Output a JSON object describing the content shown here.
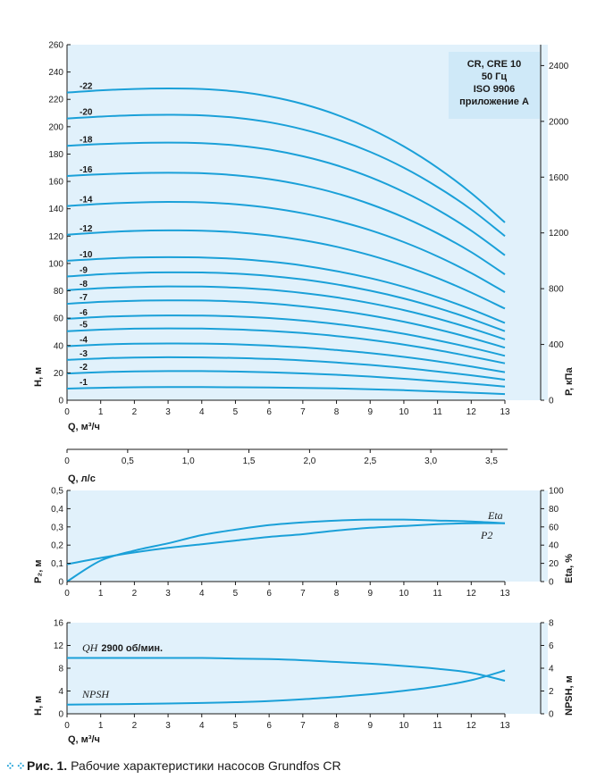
{
  "colors": {
    "curve": "#1aa0d8",
    "panel_bg": "#e1f1fb",
    "legend_bg": "#cfe9f8",
    "axis": "#1a1a1a"
  },
  "chart_data": [
    {
      "type": "line",
      "legend": [
        "CR, CRE 10",
        "50 Гц",
        "ISO 9906",
        "приложение A"
      ],
      "xlabel": "Q, м³/ч",
      "ylabel": "H, м",
      "y2label": "P, кПа",
      "xlim": [
        0,
        13
      ],
      "ylim": [
        0,
        260
      ],
      "y2lim": [
        0,
        2550
      ],
      "xticks": [
        "0",
        "1",
        "2",
        "3",
        "4",
        "5",
        "6",
        "7",
        "8",
        "9",
        "10",
        "11",
        "12",
        "13"
      ],
      "yticks": [
        "0",
        "20",
        "40",
        "60",
        "80",
        "100",
        "120",
        "140",
        "160",
        "180",
        "200",
        "220",
        "240",
        "260"
      ],
      "y2ticks": [
        "0",
        "400",
        "800",
        "1200",
        "1600",
        "2000",
        "2400"
      ],
      "x": [
        0,
        1,
        2,
        3,
        4,
        5,
        6,
        7,
        8,
        9,
        10,
        11,
        12,
        13
      ],
      "series": [
        {
          "name": "-1",
          "values": [
            8.5,
            9.1,
            9.5,
            9.6,
            9.6,
            9.5,
            9.3,
            9.0,
            8.6,
            8.0,
            7.3,
            6.4,
            5.5,
            4.5
          ]
        },
        {
          "name": "-2",
          "values": [
            19.5,
            20.5,
            21.1,
            21.3,
            21.3,
            21.0,
            20.4,
            19.6,
            18.6,
            17.3,
            15.7,
            13.9,
            12.1,
            10.0
          ]
        },
        {
          "name": "-3",
          "values": [
            29.5,
            30.6,
            31.2,
            31.4,
            31.3,
            30.9,
            30.2,
            29.1,
            27.6,
            25.8,
            23.6,
            21.0,
            18.2,
            15.0
          ]
        },
        {
          "name": "-4",
          "values": [
            39.5,
            40.7,
            41.3,
            41.5,
            41.4,
            40.9,
            39.9,
            38.6,
            36.7,
            34.5,
            31.7,
            28.4,
            24.6,
            20.5
          ]
        },
        {
          "name": "-5",
          "values": [
            50.5,
            51.6,
            52.3,
            52.5,
            52.4,
            51.8,
            50.7,
            49.1,
            46.9,
            44.1,
            40.7,
            36.6,
            31.9,
            27.0
          ]
        },
        {
          "name": "-6",
          "values": [
            59.5,
            60.9,
            61.7,
            62.0,
            61.9,
            61.3,
            60.1,
            58.2,
            55.7,
            52.5,
            48.6,
            43.8,
            38.4,
            32.5
          ]
        },
        {
          "name": "-7",
          "values": [
            70.5,
            71.9,
            72.7,
            73.0,
            72.9,
            72.2,
            70.8,
            68.6,
            65.7,
            62.0,
            57.4,
            51.9,
            45.5,
            38.5
          ]
        },
        {
          "name": "-8",
          "values": [
            80.5,
            81.9,
            82.8,
            83.2,
            83.1,
            82.3,
            80.8,
            78.4,
            75.2,
            71.0,
            65.9,
            59.7,
            52.5,
            44.5
          ]
        },
        {
          "name": "-9",
          "values": [
            90.5,
            92.1,
            93.1,
            93.5,
            93.4,
            92.6,
            90.9,
            88.3,
            84.7,
            80.1,
            74.4,
            67.5,
            59.5,
            50.5
          ]
        },
        {
          "name": "-10",
          "values": [
            102.0,
            103.4,
            104.3,
            104.6,
            104.4,
            103.4,
            101.4,
            98.5,
            94.4,
            89.3,
            82.9,
            75.3,
            66.5,
            56.5
          ]
        },
        {
          "name": "-12",
          "values": [
            121.0,
            122.7,
            123.8,
            124.2,
            124.0,
            122.8,
            120.5,
            117.0,
            112.2,
            106.0,
            98.4,
            89.3,
            78.7,
            67.0
          ]
        },
        {
          "name": "-14",
          "values": [
            142.0,
            143.6,
            144.6,
            145.0,
            144.7,
            143.3,
            140.7,
            136.7,
            131.3,
            124.3,
            115.6,
            105.2,
            93.0,
            79.0
          ]
        },
        {
          "name": "-16",
          "values": [
            164.0,
            165.2,
            166.0,
            166.3,
            166.0,
            164.5,
            161.7,
            157.3,
            151.3,
            143.4,
            133.7,
            122.0,
            108.3,
            92.0
          ]
        },
        {
          "name": "-18",
          "values": [
            186.0,
            187.3,
            188.1,
            188.4,
            188.0,
            186.4,
            183.3,
            178.4,
            171.8,
            163.1,
            152.3,
            139.3,
            124.0,
            106.0
          ]
        },
        {
          "name": "-20",
          "values": [
            206.0,
            207.4,
            208.4,
            208.7,
            208.3,
            206.6,
            203.3,
            198.1,
            190.9,
            181.6,
            170.0,
            155.9,
            139.5,
            120.0
          ]
        },
        {
          "name": "-22",
          "values": [
            225.0,
            226.6,
            227.6,
            228.0,
            227.6,
            225.8,
            222.2,
            216.6,
            208.8,
            198.5,
            185.6,
            170.0,
            151.5,
            130.0
          ]
        }
      ]
    },
    {
      "type": "line",
      "xlabel": "Q, л/с",
      "xlim": [
        0,
        3.611
      ],
      "xticks": [
        "0",
        "0,5",
        "1,0",
        "1,5",
        "2,0",
        "2,5",
        "3,0",
        "3,5"
      ]
    },
    {
      "type": "line",
      "ylabel": "P₂, м",
      "y2label": "Eta, %",
      "xlim": [
        0,
        13
      ],
      "ylim": [
        0,
        0.5
      ],
      "y2lim": [
        0,
        100
      ],
      "xticks": [
        "0",
        "1",
        "2",
        "3",
        "4",
        "5",
        "6",
        "7",
        "8",
        "9",
        "10",
        "11",
        "12",
        "13"
      ],
      "yticks": [
        "0",
        "0,1",
        "0,2",
        "0,3",
        "0,4",
        "0,5"
      ],
      "y2ticks": [
        "0",
        "20",
        "40",
        "60",
        "80",
        "100"
      ],
      "x": [
        0,
        1,
        2,
        3,
        4,
        5,
        6,
        7,
        8,
        9,
        10,
        11,
        12,
        13
      ],
      "series": [
        {
          "name": "Eta",
          "axis": "right",
          "values": [
            0,
            23,
            34,
            42,
            51,
            57,
            62,
            65,
            67,
            68,
            68,
            67,
            66,
            64
          ]
        },
        {
          "name": "P2",
          "axis": "left",
          "values": [
            0.095,
            0.13,
            0.16,
            0.185,
            0.205,
            0.225,
            0.245,
            0.26,
            0.28,
            0.295,
            0.305,
            0.315,
            0.32,
            0.32
          ]
        }
      ]
    },
    {
      "type": "line",
      "xlabel": "Q, м³/ч",
      "ylabel": "H, м",
      "y2label": "NPSH, м",
      "xlim": [
        0,
        13
      ],
      "ylim": [
        0,
        16
      ],
      "y2lim": [
        0,
        8
      ],
      "xticks": [
        "0",
        "1",
        "2",
        "3",
        "4",
        "5",
        "6",
        "7",
        "8",
        "9",
        "10",
        "11",
        "12",
        "13"
      ],
      "yticks": [
        "0",
        "4",
        "8",
        "12",
        "16"
      ],
      "y2ticks": [
        "0",
        "2",
        "4",
        "6",
        "8"
      ],
      "x": [
        0,
        1,
        2,
        3,
        4,
        5,
        6,
        7,
        8,
        9,
        10,
        11,
        12,
        13
      ],
      "series": [
        {
          "name": "QH",
          "label": "2900 об/мин.",
          "axis": "left",
          "values": [
            9.8,
            9.8,
            9.8,
            9.8,
            9.8,
            9.7,
            9.6,
            9.4,
            9.1,
            8.8,
            8.4,
            7.9,
            7.2,
            5.8
          ]
        },
        {
          "name": "NPSH",
          "axis": "right",
          "values": [
            0.8,
            0.83,
            0.86,
            0.9,
            0.95,
            1.02,
            1.12,
            1.27,
            1.47,
            1.72,
            2.02,
            2.4,
            2.95,
            3.8
          ]
        }
      ]
    }
  ],
  "caption": {
    "prefix": "Рис. 1.",
    "text": " Рабочие характеристики насосов Grundfos CR"
  }
}
